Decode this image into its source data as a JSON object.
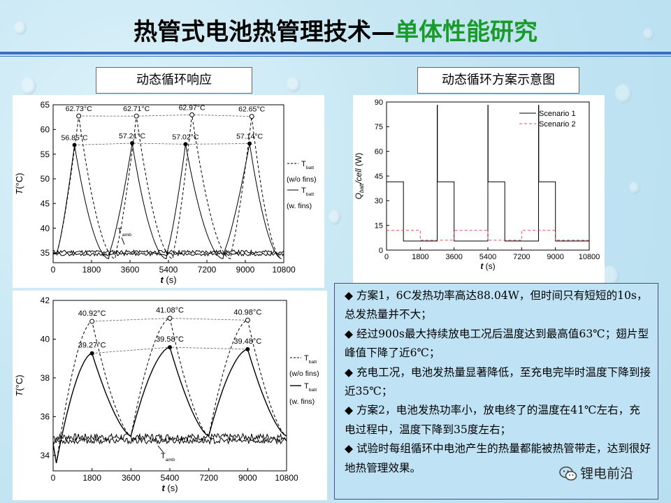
{
  "title": {
    "main": "热管式电池热管理技术—",
    "sub": "单体性能研究"
  },
  "labels": {
    "left": "动态循环响应",
    "right": "动态循环方案示意图"
  },
  "notes": [
    "◆  方案1，6C发热功率高达88.04W，但时间只有短短的10s，总发热量并不大；",
    "◆  经过900s最大持续放电工况后温度达到最高值63℃；翅片型峰值下降了近6℃；",
    "◆  充电工况，电池发热量显著降低，至充电完毕时温度下降到接近35℃；",
    "◆  方案2，电池发热功率小，放电终了的温度在41℃左右，充电过程中，温度下降到35度左右；",
    "◆  试验时每组循环中电池产生的热量都能被热管带走，达到很好地热管理效果。"
  ],
  "watermark": {
    "text": "锂电前沿",
    "icon": "wechat-icon"
  },
  "chart_data": [
    {
      "type": "line",
      "xlim": [
        0,
        10800
      ],
      "ylim": [
        33,
        65
      ],
      "xticks": [
        "0",
        "1800",
        "3600",
        "5400",
        "7200",
        "9000",
        "10800"
      ],
      "yticks": [
        "35",
        "40",
        "45",
        "50",
        "55",
        "60",
        "65"
      ],
      "xlabel": "t (s)",
      "ylabel": "T (°C)",
      "legend": [
        {
          "style": "dashed",
          "label": "T",
          "sub": "batt",
          "note": "(w/o fins)"
        },
        {
          "style": "solid",
          "label": "T",
          "sub": "batt",
          "note": "(w. fins)"
        }
      ],
      "amb_label": {
        "label": "T",
        "sub": "amb"
      },
      "peaks_wo_fins": {
        "x": [
          1200,
          3900,
          6500,
          9300
        ],
        "y": [
          62.73,
          62.71,
          62.97,
          62.65
        ],
        "labels": [
          "62.73°C",
          "62.71°C",
          "62.97°C",
          "62.65°C"
        ]
      },
      "peaks_w_fins": {
        "x": [
          1000,
          3700,
          6200,
          9200
        ],
        "y": [
          56.85,
          57.21,
          57.02,
          57.14
        ],
        "labels": [
          "56.85°C",
          "57.21°C",
          "57.02°C",
          "57.14°C"
        ]
      },
      "troughs_wo_fins": [
        2900,
        5600,
        8300
      ],
      "troughs_w_fins": [
        2600,
        5300,
        7950
      ],
      "base_temp": 34.8
    },
    {
      "type": "line",
      "xlim": [
        0,
        10800
      ],
      "ylim": [
        0,
        90
      ],
      "xticks": [
        "0",
        "1800",
        "3600",
        "5400",
        "7200",
        "9000",
        "10800"
      ],
      "yticks": [
        "0",
        "15",
        "30",
        "45",
        "60",
        "75",
        "90"
      ],
      "xlabel": "t (s)",
      "ylabel": "Q_batt/cell (W)",
      "series": [
        {
          "name": "Scenario 1",
          "style": "solid",
          "color": "#000000",
          "x": [
            0,
            900,
            900,
            2700,
            2700,
            2710,
            2710,
            3600,
            3600,
            5400,
            5400,
            5410,
            5410,
            6300,
            6300,
            8100,
            8100,
            8110,
            8110,
            9000,
            9000,
            10800
          ],
          "y": [
            41.5,
            41.5,
            5.5,
            5.5,
            88.04,
            88.04,
            41.5,
            41.5,
            5.5,
            5.5,
            88.04,
            88.04,
            41.5,
            41.5,
            5.5,
            5.5,
            88.04,
            88.04,
            41.5,
            41.5,
            5.5,
            5.5
          ]
        },
        {
          "name": "Scenario 2",
          "style": "dashed",
          "color": "#e05050",
          "x": [
            0,
            1800,
            1800,
            3600,
            3600,
            5400,
            5400,
            7200,
            7200,
            9000,
            9000,
            10800
          ],
          "y": [
            12,
            12,
            6,
            6,
            12,
            12,
            6,
            6,
            12,
            12,
            6,
            6
          ]
        }
      ]
    },
    {
      "type": "line",
      "xlim": [
        0,
        10800
      ],
      "ylim": [
        33.2,
        42
      ],
      "xticks": [
        "0",
        "1800",
        "3600",
        "5400",
        "7200",
        "9000",
        "10800"
      ],
      "yticks": [
        "34",
        "36",
        "38",
        "40",
        "42"
      ],
      "xlabel": "t (s)",
      "ylabel": "T (°C)",
      "legend": [
        {
          "style": "dashed",
          "label": "T",
          "sub": "batt",
          "note": "(w/o fins)"
        },
        {
          "style": "solid",
          "label": "T",
          "sub": "batt",
          "note": "(w. fins)"
        }
      ],
      "amb_label": {
        "label": "T",
        "sub": "amb"
      },
      "peaks_wo_fins": {
        "x": [
          1800,
          5400,
          9000
        ],
        "y": [
          40.92,
          41.08,
          40.98
        ],
        "labels": [
          "40.92°C",
          "41.08°C",
          "40.98°C"
        ]
      },
      "peaks_w_fins": {
        "x": [
          1800,
          5400,
          9000
        ],
        "y": [
          39.27,
          39.58,
          39.48
        ],
        "labels": [
          "39.27°C",
          "39.58°C",
          "39.48°C"
        ]
      },
      "troughs": [
        3600,
        7200,
        10800
      ],
      "base_temp": 34.8
    }
  ]
}
